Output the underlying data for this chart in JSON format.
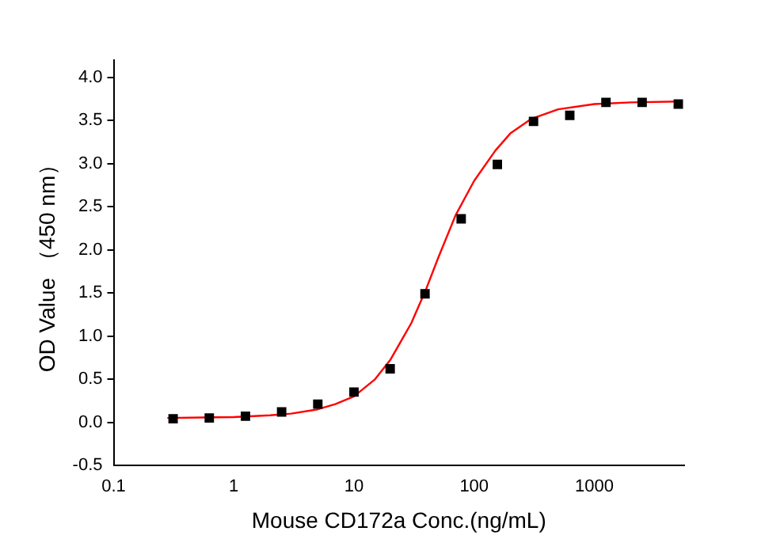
{
  "chart_data": {
    "type": "scatter",
    "xlabel": "Mouse CD172a Conc.(ng/mL)",
    "ylabel": "OD Value （450 nm）",
    "log": "x",
    "xlim": [
      0.1,
      5600
    ],
    "xticks": [
      0.1,
      1,
      10,
      100,
      1000
    ],
    "ylim": [
      -0.5,
      4.2
    ],
    "yticks": [
      -0.5,
      {
        "value": 0,
        "label": "0.0"
      },
      0.5,
      {
        "value": 1,
        "label": "1.0"
      },
      1.5,
      {
        "value": 2,
        "label": "2.0"
      },
      2.5,
      {
        "value": 3,
        "label": "3.0"
      },
      3.5,
      {
        "value": 4,
        "label": "4.0"
      }
    ],
    "grid": false,
    "legend": false,
    "marker": "square",
    "series": [
      {
        "type": "scatter",
        "color": "#000000",
        "x": [
          0.3125,
          0.625,
          1.25,
          2.5,
          5,
          10,
          20,
          39,
          78,
          156,
          312,
          625,
          1250,
          2500,
          5000
        ],
        "values": [
          0.04,
          0.05,
          0.07,
          0.12,
          0.21,
          0.35,
          0.62,
          1.49,
          2.36,
          2.99,
          3.49,
          3.56,
          3.71,
          3.71,
          3.69
        ]
      },
      {
        "type": "line",
        "color": "#ff0000",
        "marker": "none",
        "line_style": "solid",
        "x": [
          0.28,
          1,
          2,
          3,
          5,
          7,
          10,
          15,
          20,
          30,
          40,
          50,
          70,
          100,
          150,
          200,
          300,
          500,
          1000,
          2000,
          5000
        ],
        "values": [
          0.05,
          0.06,
          0.08,
          0.1,
          0.15,
          0.21,
          0.3,
          0.5,
          0.72,
          1.15,
          1.55,
          1.9,
          2.4,
          2.8,
          3.15,
          3.35,
          3.52,
          3.63,
          3.69,
          3.71,
          3.72
        ]
      }
    ]
  }
}
